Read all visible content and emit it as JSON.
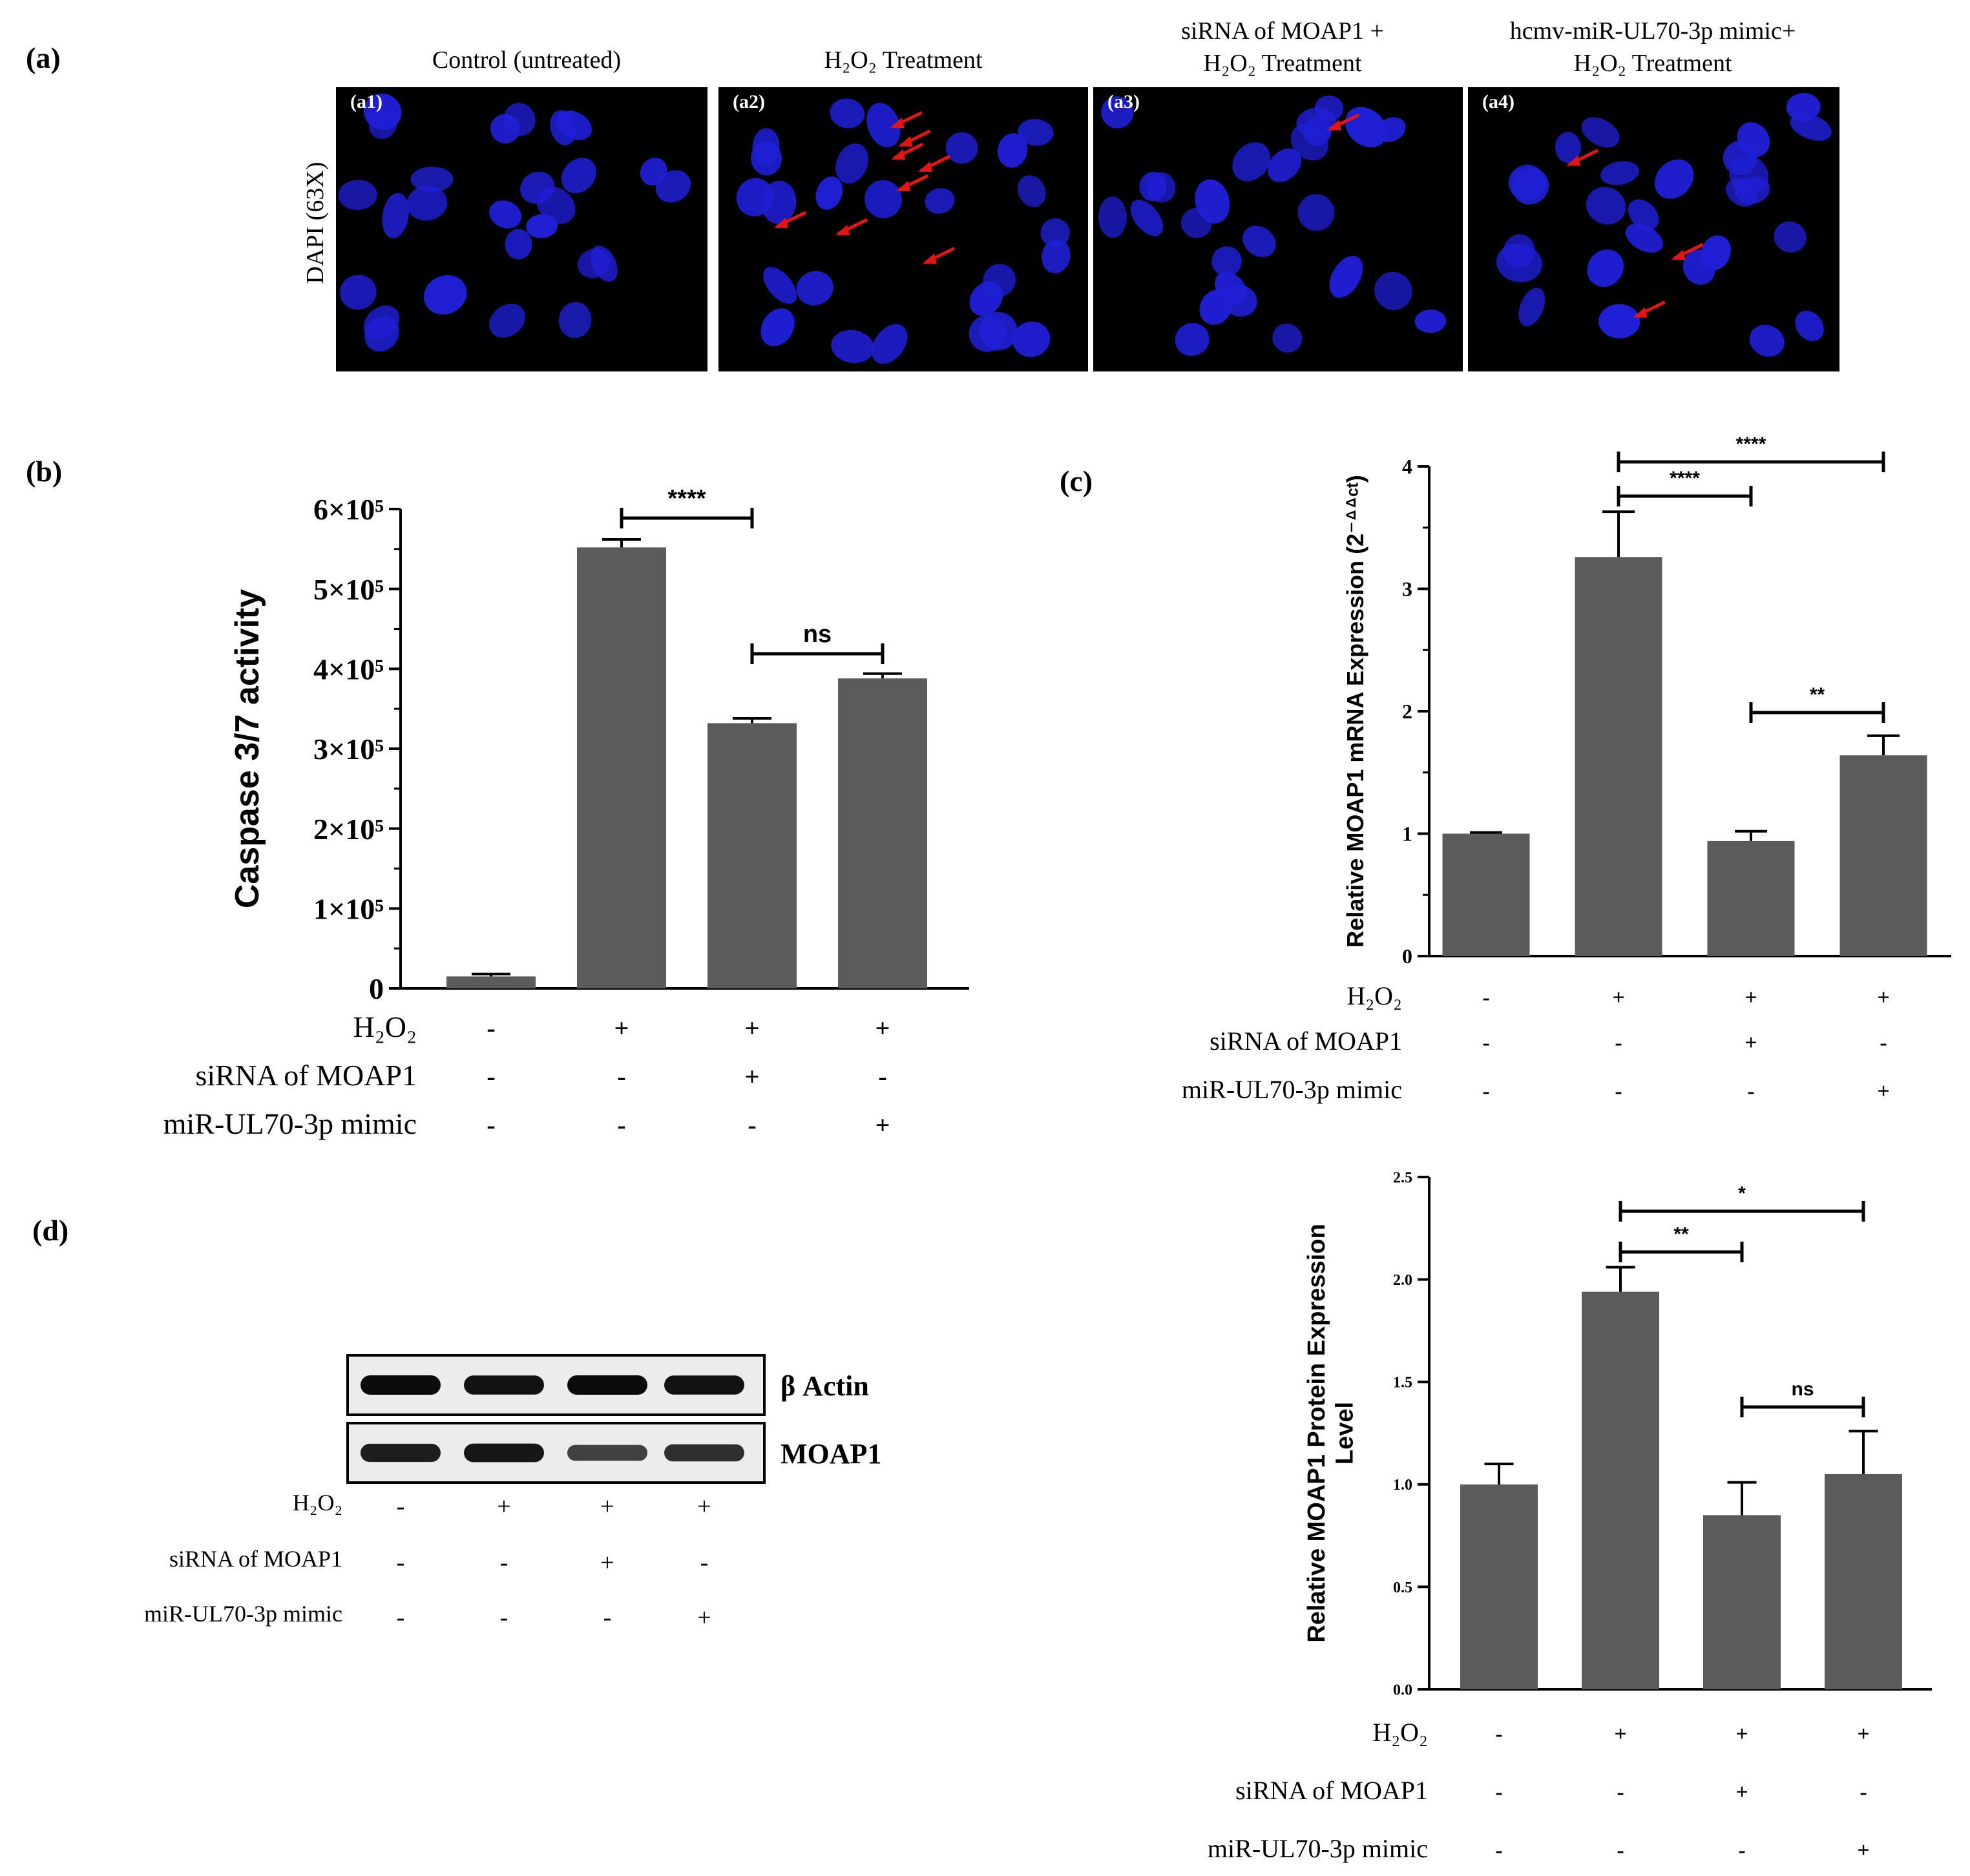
{
  "panel_labels": {
    "a": "(a)",
    "b": "(b)",
    "c": "(c)",
    "d": "(d)"
  },
  "colors": {
    "bar": "#5b5b5b",
    "micro_bg": "#000000",
    "nucleus": "#1f1fd6",
    "arrow": "#e01515",
    "text": "#000000"
  },
  "microscopy": {
    "row_label": "DAPI (63X)",
    "panels": [
      {
        "tag": "(a1)",
        "title_lines": [
          "Control (untreated)"
        ],
        "arrows": 0
      },
      {
        "tag": "(a2)",
        "title_lines": [
          "H₂O₂ Treatment"
        ],
        "arrows": 8
      },
      {
        "tag": "(a3)",
        "title_lines": [
          "siRNA of MOAP1 +",
          "H₂O₂ Treatment"
        ],
        "arrows": 1
      },
      {
        "tag": "(a4)",
        "title_lines": [
          "hcmv-miR-UL70-3p mimic+",
          "H₂O₂ Treatment"
        ],
        "arrows": 3
      }
    ]
  },
  "western_blot": {
    "bands": [
      {
        "label": "β Actin",
        "intensity": [
          1.0,
          0.95,
          1.0,
          0.95
        ]
      },
      {
        "label": "MOAP1",
        "intensity": [
          0.85,
          0.9,
          0.55,
          0.7
        ]
      }
    ],
    "conditions": [
      {
        "label": "H₂O₂",
        "signs": [
          "-",
          "+",
          "+",
          "+"
        ]
      },
      {
        "label": "siRNA of MOAP1",
        "signs": [
          "-",
          "-",
          "+",
          "-"
        ]
      },
      {
        "label": "miR-UL70-3p mimic",
        "signs": [
          "-",
          "-",
          "-",
          "+"
        ]
      }
    ]
  },
  "chart_data": [
    {
      "id": "b",
      "type": "bar",
      "ylabel": "Caspase 3/7 activity",
      "ylim": [
        0,
        600000
      ],
      "yticks": [
        {
          "value": 0,
          "label": "0"
        },
        {
          "value": 100000,
          "label": "1×10⁵"
        },
        {
          "value": 200000,
          "label": "2×10⁵"
        },
        {
          "value": 300000,
          "label": "3×10⁵"
        },
        {
          "value": 400000,
          "label": "4×10⁵"
        },
        {
          "value": 500000,
          "label": "5×10⁵"
        },
        {
          "value": 600000,
          "label": "6×10⁵"
        }
      ],
      "values": [
        15000,
        552000,
        332000,
        388000
      ],
      "errors": [
        3000,
        10000,
        6000,
        6000
      ],
      "conditions": [
        {
          "label": "H₂O₂",
          "signs": [
            "-",
            "+",
            "+",
            "+"
          ]
        },
        {
          "label": "siRNA of MOAP1",
          "signs": [
            "-",
            "-",
            "+",
            "-"
          ]
        },
        {
          "label": "miR-UL70-3p mimic",
          "signs": [
            "-",
            "-",
            "-",
            "+"
          ]
        }
      ],
      "significance": [
        {
          "from": 1,
          "to": 2,
          "text": "****"
        },
        {
          "from": 2,
          "to": 3,
          "text": "ns"
        }
      ]
    },
    {
      "id": "c",
      "type": "bar",
      "ylabel": "Relative MOAP1 mRNA Expression (2⁻ᐞᐞᶜᵗ)",
      "ylim": [
        0,
        4
      ],
      "yticks": [
        {
          "value": 0,
          "label": "0"
        },
        {
          "value": 1,
          "label": "1"
        },
        {
          "value": 2,
          "label": "2"
        },
        {
          "value": 3,
          "label": "3"
        },
        {
          "value": 4,
          "label": "4"
        }
      ],
      "values": [
        1.0,
        3.26,
        0.94,
        1.64
      ],
      "errors": [
        0.01,
        0.37,
        0.08,
        0.16
      ],
      "conditions": [
        {
          "label": "H₂O₂",
          "signs": [
            "-",
            "+",
            "+",
            "+"
          ]
        },
        {
          "label": "siRNA of MOAP1",
          "signs": [
            "-",
            "-",
            "+",
            "-"
          ]
        },
        {
          "label": "miR-UL70-3p mimic",
          "signs": [
            "-",
            "-",
            "-",
            "+"
          ]
        }
      ],
      "significance": [
        {
          "from": 1,
          "to": 3,
          "text": "****"
        },
        {
          "from": 1,
          "to": 2,
          "text": "****"
        },
        {
          "from": 2,
          "to": 3,
          "text": "**"
        }
      ]
    },
    {
      "id": "d",
      "type": "bar",
      "ylabel_lines": [
        "Relative MOAP1 Protein  Expression",
        "Level"
      ],
      "ylim": [
        0,
        2.5
      ],
      "yticks": [
        {
          "value": 0,
          "label": "0.0"
        },
        {
          "value": 0.5,
          "label": "0.5"
        },
        {
          "value": 1.0,
          "label": "1.0"
        },
        {
          "value": 1.5,
          "label": "1.5"
        },
        {
          "value": 2.0,
          "label": "2.0"
        },
        {
          "value": 2.5,
          "label": "2.5"
        }
      ],
      "values": [
        1.0,
        1.94,
        0.85,
        1.05
      ],
      "errors": [
        0.1,
        0.12,
        0.16,
        0.21
      ],
      "conditions": [
        {
          "label": "H₂O₂",
          "signs": [
            "-",
            "+",
            "+",
            "+"
          ]
        },
        {
          "label": "siRNA of MOAP1",
          "signs": [
            "-",
            "-",
            "+",
            "-"
          ]
        },
        {
          "label": "miR-UL70-3p mimic",
          "signs": [
            "-",
            "-",
            "-",
            "+"
          ]
        }
      ],
      "significance": [
        {
          "from": 1,
          "to": 3,
          "text": "*"
        },
        {
          "from": 1,
          "to": 2,
          "text": "**"
        },
        {
          "from": 2,
          "to": 3,
          "text": "ns"
        }
      ]
    }
  ]
}
